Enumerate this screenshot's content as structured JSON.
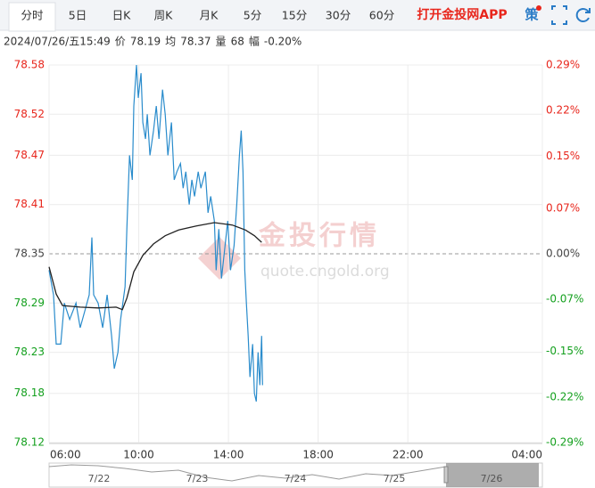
{
  "tabs": [
    "分时",
    "5日",
    "日K",
    "周K",
    "月K",
    "5分",
    "15分",
    "30分",
    "60分"
  ],
  "app_link": "打开金投网APP",
  "strategy": "策",
  "info": [
    "2024/07/26/五15:49",
    "价",
    "78.19",
    "均",
    "78.37",
    "量",
    "68",
    "幅",
    "-0.20%"
  ],
  "watermark": {
    "title": "金投行情",
    "url": "quote.cngold.org"
  },
  "navigator": {
    "dates": [
      "7/22",
      "7/23",
      "7/24",
      "7/25",
      "7/26"
    ]
  },
  "chart_data": {
    "type": "line",
    "xlim": [
      6,
      28
    ],
    "xticks": [
      {
        "value": 6,
        "label": "06:00"
      },
      {
        "value": 10,
        "label": "10:00"
      },
      {
        "value": 14,
        "label": "14:00"
      },
      {
        "value": 18,
        "label": "18:00"
      },
      {
        "value": 22,
        "label": "22:00"
      },
      {
        "value": 28,
        "label": "04:00"
      }
    ],
    "ylim": [
      78.12,
      78.58
    ],
    "yticks": [
      78.58,
      78.52,
      78.47,
      78.41,
      78.35,
      78.29,
      78.23,
      78.18,
      78.12
    ],
    "y2lim": [
      -0.29,
      0.29
    ],
    "y2ticks": [
      {
        "value": 0.29,
        "label": "0.29%"
      },
      {
        "value": 0.22,
        "label": "0.22%"
      },
      {
        "value": 0.15,
        "label": "0.15%"
      },
      {
        "value": 0.07,
        "label": "0.07%"
      },
      {
        "value": 0,
        "label": "0.00%"
      },
      {
        "value": -0.07,
        "label": "-0.07%"
      },
      {
        "value": -0.15,
        "label": "-0.15%"
      },
      {
        "value": -0.22,
        "label": "-0.22%"
      },
      {
        "value": -0.29,
        "label": "-0.29%"
      }
    ],
    "grid": true,
    "tick_colors": {
      "up": "#e8261c",
      "flat": "#444444",
      "down": "#14a01e"
    },
    "series": [
      {
        "color": "#2a8ccc",
        "x": [
          6.0,
          6.2,
          6.32,
          6.52,
          6.68,
          6.92,
          7.2,
          7.39,
          7.59,
          7.79,
          7.91,
          7.99,
          8.19,
          8.39,
          8.59,
          8.79,
          8.91,
          9.07,
          9.19,
          9.39,
          9.47,
          9.59,
          9.71,
          9.78,
          9.9,
          9.98,
          10.1,
          10.18,
          10.3,
          10.38,
          10.5,
          10.66,
          10.78,
          10.9,
          11.06,
          11.18,
          11.3,
          11.46,
          11.58,
          11.7,
          11.86,
          11.98,
          12.1,
          12.25,
          12.37,
          12.49,
          12.65,
          12.77,
          12.97,
          13.09,
          13.21,
          13.37,
          13.45,
          13.57,
          13.69,
          13.85,
          13.97,
          14.09,
          14.25,
          14.37,
          14.49,
          14.57,
          14.65,
          14.73,
          14.8,
          14.88,
          14.96,
          15.08,
          15.16,
          15.24,
          15.32,
          15.4,
          15.48,
          15.52
        ],
        "values": [
          78.33,
          78.3,
          78.24,
          78.24,
          78.29,
          78.27,
          78.29,
          78.26,
          78.28,
          78.3,
          78.37,
          78.3,
          78.29,
          78.26,
          78.3,
          78.25,
          78.21,
          78.23,
          78.27,
          78.31,
          78.38,
          78.47,
          78.44,
          78.53,
          78.58,
          78.54,
          78.57,
          78.51,
          78.49,
          78.52,
          78.47,
          78.5,
          78.53,
          78.49,
          78.55,
          78.52,
          78.47,
          78.51,
          78.44,
          78.45,
          78.46,
          78.43,
          78.45,
          78.41,
          78.44,
          78.42,
          78.45,
          78.43,
          78.45,
          78.4,
          78.42,
          78.39,
          78.33,
          78.38,
          78.32,
          78.36,
          78.39,
          78.33,
          78.36,
          78.41,
          78.47,
          78.5,
          78.45,
          78.33,
          78.29,
          78.25,
          78.2,
          78.24,
          78.18,
          78.17,
          78.23,
          78.19,
          78.25,
          78.19
        ]
      },
      {
        "color": "#222222",
        "x": [
          6.0,
          6.32,
          6.6,
          7.39,
          8.19,
          8.99,
          9.27,
          9.47,
          9.78,
          10.18,
          10.66,
          11.18,
          11.78,
          12.57,
          13.37,
          14.17,
          14.76,
          15.16,
          15.48
        ],
        "values": [
          78.334,
          78.301,
          78.287,
          78.285,
          78.284,
          78.285,
          78.282,
          78.296,
          78.328,
          78.348,
          78.362,
          78.372,
          78.379,
          78.384,
          78.388,
          78.385,
          78.379,
          78.372,
          78.364
        ]
      }
    ]
  }
}
